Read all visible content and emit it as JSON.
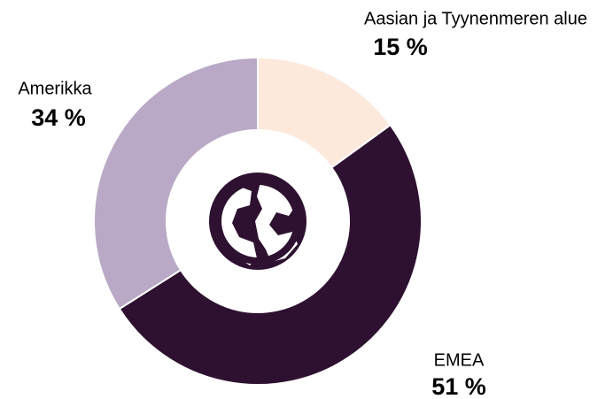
{
  "chart_data": {
    "type": "pie",
    "donut": true,
    "categories": [
      "Aasian ja Tyynenmeren alue",
      "EMEA",
      "Amerikka"
    ],
    "values": [
      15,
      51,
      34
    ],
    "value_labels": [
      "15 %",
      "51 %",
      "34 %"
    ],
    "colors": [
      "#fde8dc",
      "#2e1130",
      "#b9a9c6"
    ]
  }
}
